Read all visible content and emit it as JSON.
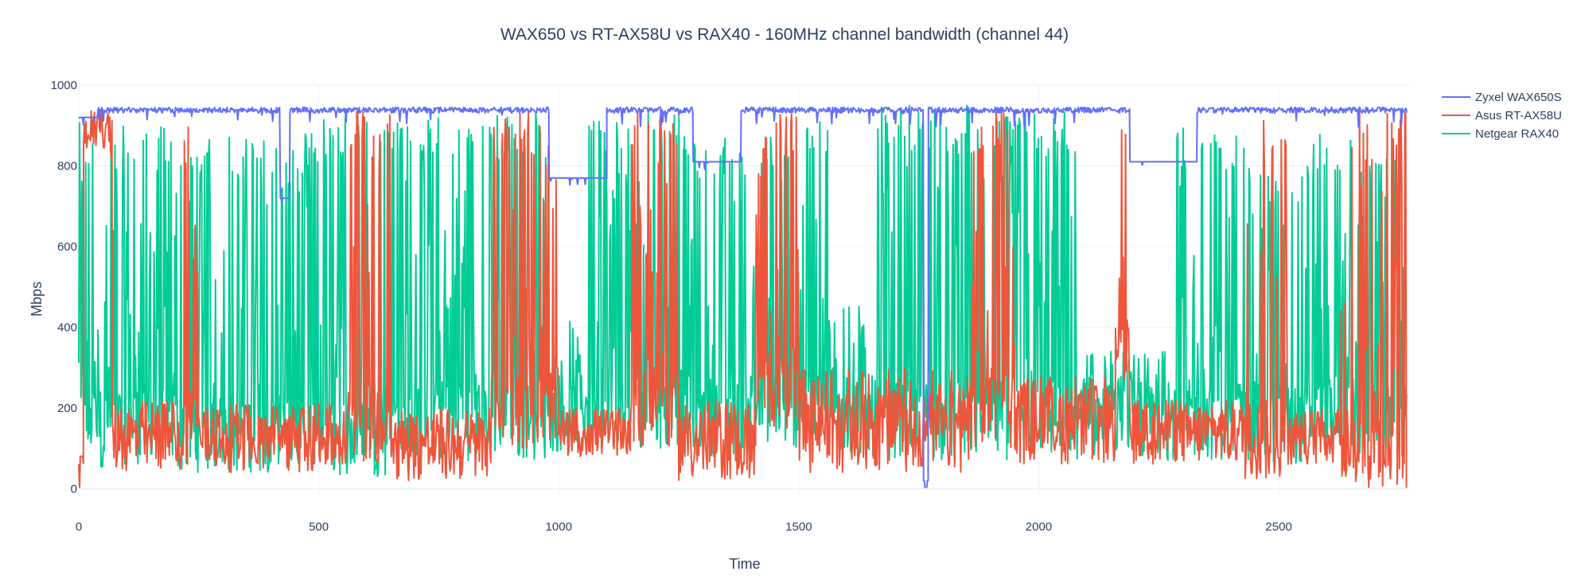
{
  "chart_data": {
    "type": "line",
    "title": "WAX650 vs RT-AX58U vs RAX40 - 160MHz channel bandwidth (channel 44)",
    "xlabel": "Time",
    "ylabel": "Mbps",
    "xlim": [
      0,
      2770
    ],
    "ylim": [
      -15,
      1000
    ],
    "x_ticks": [
      0,
      500,
      1000,
      1500,
      2000,
      2500
    ],
    "y_ticks": [
      0,
      200,
      400,
      600,
      800,
      1000
    ],
    "grid": true,
    "legend_position": "top-right",
    "x_range": [
      0,
      2767
    ],
    "series": [
      {
        "name": "Zyxel WAX650S",
        "color": "#636efa",
        "baseline": 945,
        "segments": [
          {
            "x": [
              0,
              40
            ],
            "y": [
              945,
              900
            ]
          },
          {
            "x": [
              40,
              380
            ],
            "y": [
              945,
              945
            ]
          },
          {
            "x": [
              380,
              420
            ],
            "y": [
              945,
              910
            ]
          },
          {
            "x": [
              420,
              440
            ],
            "y": [
              930,
              700
            ]
          },
          {
            "x": [
              440,
              980
            ],
            "y": [
              945,
              945
            ]
          },
          {
            "x": [
              980,
              1100
            ],
            "y": [
              945,
              750
            ]
          },
          {
            "x": [
              1100,
              1280
            ],
            "y": [
              945,
              945
            ]
          },
          {
            "x": [
              1280,
              1380
            ],
            "y": [
              945,
              790
            ]
          },
          {
            "x": [
              1380,
              1760
            ],
            "y": [
              945,
              945
            ]
          },
          {
            "x": [
              1760,
              1770
            ],
            "y": [
              945,
              0
            ]
          },
          {
            "x": [
              1770,
              2190
            ],
            "y": [
              945,
              945
            ]
          },
          {
            "x": [
              2190,
              2330
            ],
            "y": [
              945,
              790
            ]
          },
          {
            "x": [
              2330,
              2767
            ],
            "y": [
              945,
              945
            ]
          }
        ]
      },
      {
        "name": "Asus RT-AX58U",
        "color": "#ef553b",
        "segments": [
          {
            "x": [
              0,
              10
            ],
            "y": [
              360,
              60
            ]
          },
          {
            "x": [
              10,
              70
            ],
            "y": [
              840,
              940
            ]
          },
          {
            "x": [
              70,
              220
            ],
            "y": [
              40,
              220
            ]
          },
          {
            "x": [
              220,
              250
            ],
            "y": [
              60,
              940
            ]
          },
          {
            "x": [
              250,
              560
            ],
            "y": [
              40,
              210
            ]
          },
          {
            "x": [
              560,
              660
            ],
            "y": [
              60,
              940
            ]
          },
          {
            "x": [
              660,
              860
            ],
            "y": [
              20,
              200
            ]
          },
          {
            "x": [
              860,
              1000
            ],
            "y": [
              100,
              940
            ]
          },
          {
            "x": [
              1000,
              1150
            ],
            "y": [
              80,
              200
            ]
          },
          {
            "x": [
              1150,
              1250
            ],
            "y": [
              100,
              940
            ]
          },
          {
            "x": [
              1250,
              1410
            ],
            "y": [
              20,
              220
            ]
          },
          {
            "x": [
              1410,
              1500
            ],
            "y": [
              150,
              940
            ]
          },
          {
            "x": [
              1500,
              1860
            ],
            "y": [
              40,
              300
            ]
          },
          {
            "x": [
              1860,
              1950
            ],
            "y": [
              100,
              940
            ]
          },
          {
            "x": [
              1950,
              2160
            ],
            "y": [
              60,
              280
            ]
          },
          {
            "x": [
              2160,
              2190
            ],
            "y": [
              200,
              940
            ]
          },
          {
            "x": [
              2190,
              2430
            ],
            "y": [
              60,
              220
            ]
          },
          {
            "x": [
              2430,
              2520
            ],
            "y": [
              20,
              940
            ]
          },
          {
            "x": [
              2520,
              2630
            ],
            "y": [
              60,
              200
            ]
          },
          {
            "x": [
              2630,
              2767
            ],
            "y": [
              0,
              940
            ]
          }
        ]
      },
      {
        "name": "Netgear RAX40",
        "color": "#00cc96",
        "segments": [
          {
            "x": [
              0,
              80
            ],
            "y": [
              50,
              910
            ]
          },
          {
            "x": [
              80,
              200
            ],
            "y": [
              60,
              900
            ]
          },
          {
            "x": [
              200,
              480
            ],
            "y": [
              40,
              880
            ]
          },
          {
            "x": [
              480,
              640
            ],
            "y": [
              30,
              920
            ]
          },
          {
            "x": [
              640,
              980
            ],
            "y": [
              70,
              930
            ]
          },
          {
            "x": [
              980,
              1060
            ],
            "y": [
              90,
              420
            ]
          },
          {
            "x": [
              1060,
              1260
            ],
            "y": [
              100,
              930
            ]
          },
          {
            "x": [
              1260,
              1400
            ],
            "y": [
              80,
              880
            ]
          },
          {
            "x": [
              1400,
              1560
            ],
            "y": [
              100,
              920
            ]
          },
          {
            "x": [
              1560,
              1660
            ],
            "y": [
              80,
              460
            ]
          },
          {
            "x": [
              1660,
              2080
            ],
            "y": [
              70,
              950
            ]
          },
          {
            "x": [
              2080,
              2280
            ],
            "y": [
              70,
              340
            ]
          },
          {
            "x": [
              2280,
              2430
            ],
            "y": [
              70,
              900
            ]
          },
          {
            "x": [
              2430,
              2560
            ],
            "y": [
              60,
              800
            ]
          },
          {
            "x": [
              2560,
              2680
            ],
            "y": [
              80,
              900
            ]
          },
          {
            "x": [
              2680,
              2767
            ],
            "y": [
              80,
              820
            ]
          }
        ]
      }
    ]
  }
}
